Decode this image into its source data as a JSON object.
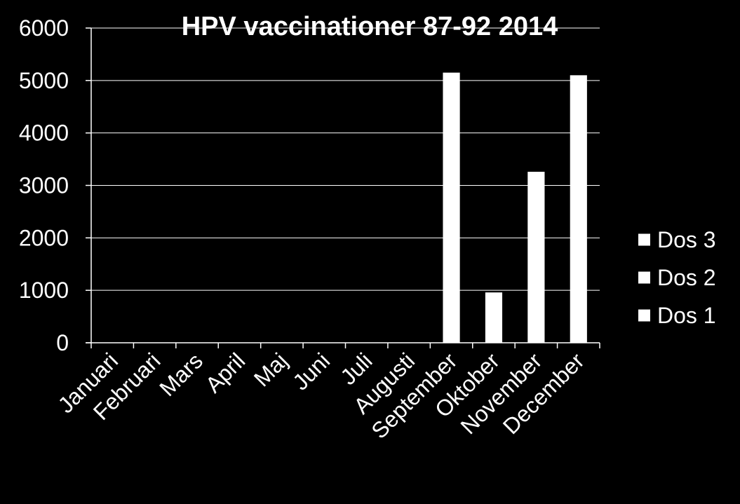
{
  "chart_data": {
    "type": "bar",
    "stacked": true,
    "title": "HPV vaccinationer 87-92 2014",
    "categories": [
      "Januari",
      "Februari",
      "Mars",
      "April",
      "Maj",
      "Juni",
      "Juli",
      "Augusti",
      "September",
      "Oktober",
      "November",
      "December"
    ],
    "series": [
      {
        "name": "Dos 1",
        "values": [
          0,
          0,
          0,
          0,
          0,
          0,
          0,
          0,
          5150,
          960,
          3260,
          5100
        ]
      },
      {
        "name": "Dos 2",
        "values": [
          0,
          0,
          0,
          0,
          0,
          0,
          0,
          0,
          0,
          0,
          0,
          0
        ]
      },
      {
        "name": "Dos 3",
        "values": [
          0,
          0,
          0,
          0,
          0,
          0,
          0,
          0,
          0,
          0,
          0,
          0
        ]
      }
    ],
    "legend_order": [
      "Dos 3",
      "Dos 2",
      "Dos 1"
    ],
    "ylim": [
      0,
      6000
    ],
    "yticks": [
      0,
      1000,
      2000,
      3000,
      4000,
      5000,
      6000
    ],
    "grid": true,
    "legend_position": "right",
    "colors": {
      "background": "#000000",
      "bars": "#ffffff",
      "text": "#ffffff",
      "grid": "#ffffff"
    }
  }
}
